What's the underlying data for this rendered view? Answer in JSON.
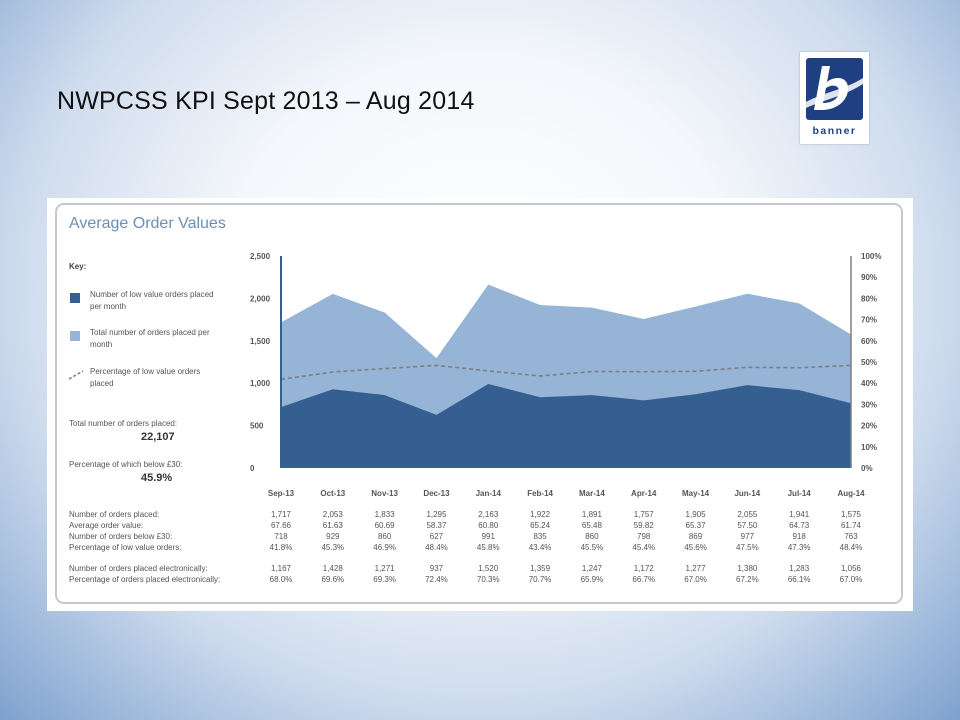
{
  "slide": {
    "title": "NWPCSS KPI Sept 2013 – Aug 2014"
  },
  "logo": {
    "word": "banner",
    "colors": {
      "blue": "#1e3f82",
      "light": "#ffffff"
    }
  },
  "panel": {
    "title": "Average Order Values"
  },
  "key": {
    "heading": "Key:",
    "items": [
      {
        "label": "Number of low value orders placed per month",
        "color": "#365f91",
        "shape": "square"
      },
      {
        "label": "Total number of orders placed per month",
        "color": "#96b4d6",
        "shape": "square"
      },
      {
        "label": "Percentage of low value orders placed",
        "color": "#7f7f7f",
        "shape": "dashed-line"
      }
    ]
  },
  "stats": {
    "total_label": "Total number of orders placed:",
    "total_value": "22,107",
    "below_label": "Percentage of which below £30:",
    "below_value": "45.9%"
  },
  "chart_data": {
    "type": "area",
    "categories": [
      "Sep-13",
      "Oct-13",
      "Nov-13",
      "Dec-13",
      "Jan-14",
      "Feb-14",
      "Mar-14",
      "Apr-14",
      "May-14",
      "Jun-14",
      "Jul-14",
      "Aug-14"
    ],
    "series": [
      {
        "name": "Total number of orders placed per month",
        "type": "area",
        "axis": "left",
        "color": "#96b4d6",
        "values": [
          1717,
          2053,
          1833,
          1295,
          2163,
          1922,
          1891,
          1757,
          1905,
          2055,
          1941,
          1575
        ]
      },
      {
        "name": "Number of low value orders placed per month",
        "type": "area",
        "axis": "left",
        "color": "#365f91",
        "values": [
          718,
          929,
          860,
          627,
          991,
          835,
          860,
          798,
          869,
          977,
          918,
          763
        ]
      },
      {
        "name": "Percentage of low value orders placed",
        "type": "line",
        "style": "dashed",
        "axis": "right",
        "color": "#7f7f7f",
        "values": [
          41.8,
          45.3,
          46.9,
          48.4,
          45.8,
          43.4,
          45.5,
          45.4,
          45.6,
          47.5,
          47.3,
          48.4
        ]
      }
    ],
    "y_left": {
      "min": 0,
      "max": 2500,
      "ticks": [
        "0",
        "500",
        "1,000",
        "1,500",
        "2,000",
        "2,500"
      ]
    },
    "y_right": {
      "min": 0,
      "max": 100,
      "ticks": [
        "0%",
        "10%",
        "20%",
        "30%",
        "40%",
        "50%",
        "60%",
        "70%",
        "80%",
        "90%",
        "100%"
      ]
    },
    "grid": false,
    "legend": "left"
  },
  "table": {
    "rows": [
      {
        "label": "Number of orders placed:",
        "values": [
          "1,717",
          "2,053",
          "1,833",
          "1,295",
          "2,163",
          "1,922",
          "1,891",
          "1,757",
          "1,905",
          "2,055",
          "1,941",
          "1,575"
        ]
      },
      {
        "label": "Average order value:",
        "values": [
          "67.66",
          "61.63",
          "60.69",
          "58.37",
          "60.80",
          "65.24",
          "65.48",
          "59.82",
          "65.37",
          "57.50",
          "64.73",
          "61.74"
        ]
      },
      {
        "label": "Number of orders below £30:",
        "values": [
          "718",
          "929",
          "860",
          "627",
          "991",
          "835",
          "860",
          "798",
          "869",
          "977",
          "918",
          "763"
        ]
      },
      {
        "label": "Percentage of low value orders:",
        "values": [
          "41.8%",
          "45.3%",
          "46.9%",
          "48.4%",
          "45.8%",
          "43.4%",
          "45.5%",
          "45.4%",
          "45.6%",
          "47.5%",
          "47.3%",
          "48.4%"
        ]
      },
      {
        "label": "Number of orders placed electronically:",
        "values": [
          "1,167",
          "1,428",
          "1,271",
          "937",
          "1,520",
          "1,359",
          "1,247",
          "1,172",
          "1,277",
          "1,380",
          "1,283",
          "1,056"
        ]
      },
      {
        "label": "Percentage of orders placed electronically:",
        "values": [
          "68.0%",
          "69.6%",
          "69.3%",
          "72.4%",
          "70.3%",
          "70.7%",
          "65.9%",
          "66.7%",
          "67.0%",
          "67.2%",
          "66.1%",
          "67.0%"
        ]
      }
    ]
  }
}
